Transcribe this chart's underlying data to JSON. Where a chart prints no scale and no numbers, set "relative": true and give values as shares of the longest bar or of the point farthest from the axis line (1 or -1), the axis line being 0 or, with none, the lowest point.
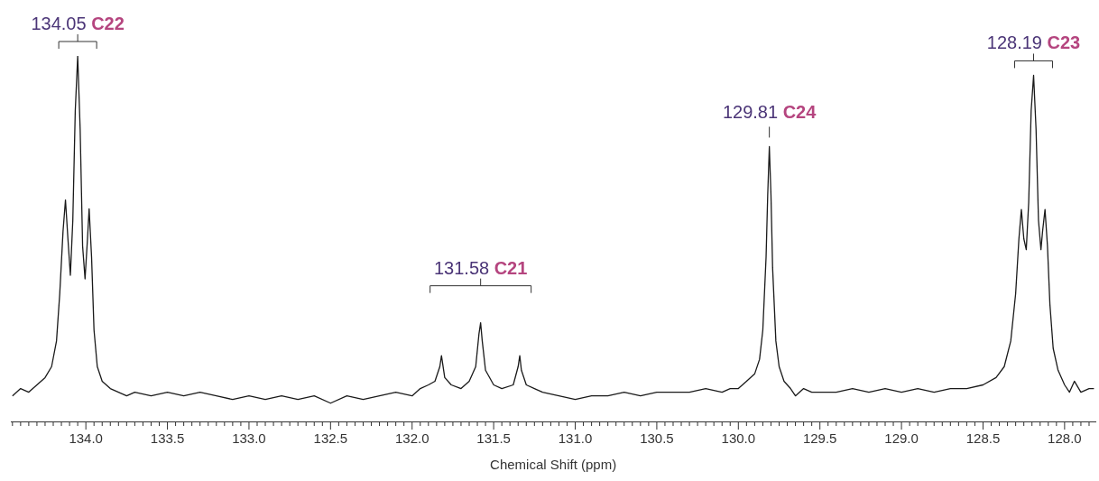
{
  "chart_data": {
    "type": "line",
    "relative": true,
    "xlabel": "Chemical Shift (ppm)",
    "color": "#1a1a1a",
    "marker": "none",
    "line_style": "solid",
    "legend": false,
    "grid": false,
    "xlim": [
      134.46,
      127.81
    ],
    "xticks": [
      {
        "value": 134.45,
        "label": null
      },
      {
        "value": 134.4,
        "label": null
      },
      {
        "value": 134.35,
        "label": null
      },
      {
        "value": 134.3,
        "label": null
      },
      {
        "value": 134.25,
        "label": null
      },
      {
        "value": 134.2,
        "label": null
      },
      {
        "value": 134.15,
        "label": null
      },
      {
        "value": 134.1,
        "label": null
      },
      {
        "value": 134.05,
        "label": null
      },
      {
        "value": 134,
        "label": "134.0"
      },
      {
        "value": 133.95,
        "label": null
      },
      {
        "value": 133.9,
        "label": null
      },
      {
        "value": 133.85,
        "label": null
      },
      {
        "value": 133.8,
        "label": null
      },
      {
        "value": 133.75,
        "label": null
      },
      {
        "value": 133.7,
        "label": null
      },
      {
        "value": 133.65,
        "label": null
      },
      {
        "value": 133.6,
        "label": null
      },
      {
        "value": 133.55,
        "label": null
      },
      {
        "value": 133.5,
        "label": "133.5"
      },
      {
        "value": 133.45,
        "label": null
      },
      {
        "value": 133.4,
        "label": null
      },
      {
        "value": 133.35,
        "label": null
      },
      {
        "value": 133.3,
        "label": null
      },
      {
        "value": 133.25,
        "label": null
      },
      {
        "value": 133.2,
        "label": null
      },
      {
        "value": 133.15,
        "label": null
      },
      {
        "value": 133.1,
        "label": null
      },
      {
        "value": 133.05,
        "label": null
      },
      {
        "value": 133,
        "label": "133.0"
      },
      {
        "value": 132.95,
        "label": null
      },
      {
        "value": 132.9,
        "label": null
      },
      {
        "value": 132.85,
        "label": null
      },
      {
        "value": 132.8,
        "label": null
      },
      {
        "value": 132.75,
        "label": null
      },
      {
        "value": 132.7,
        "label": null
      },
      {
        "value": 132.65,
        "label": null
      },
      {
        "value": 132.6,
        "label": null
      },
      {
        "value": 132.55,
        "label": null
      },
      {
        "value": 132.5,
        "label": "132.5"
      },
      {
        "value": 132.45,
        "label": null
      },
      {
        "value": 132.4,
        "label": null
      },
      {
        "value": 132.35,
        "label": null
      },
      {
        "value": 132.3,
        "label": null
      },
      {
        "value": 132.25,
        "label": null
      },
      {
        "value": 132.2,
        "label": null
      },
      {
        "value": 132.15,
        "label": null
      },
      {
        "value": 132.1,
        "label": null
      },
      {
        "value": 132.05,
        "label": null
      },
      {
        "value": 132,
        "label": "132.0"
      },
      {
        "value": 131.95,
        "label": null
      },
      {
        "value": 131.9,
        "label": null
      },
      {
        "value": 131.85,
        "label": null
      },
      {
        "value": 131.8,
        "label": null
      },
      {
        "value": 131.75,
        "label": null
      },
      {
        "value": 131.7,
        "label": null
      },
      {
        "value": 131.65,
        "label": null
      },
      {
        "value": 131.6,
        "label": null
      },
      {
        "value": 131.55,
        "label": null
      },
      {
        "value": 131.5,
        "label": "131.5"
      },
      {
        "value": 131.45,
        "label": null
      },
      {
        "value": 131.4,
        "label": null
      },
      {
        "value": 131.35,
        "label": null
      },
      {
        "value": 131.3,
        "label": null
      },
      {
        "value": 131.25,
        "label": null
      },
      {
        "value": 131.2,
        "label": null
      },
      {
        "value": 131.15,
        "label": null
      },
      {
        "value": 131.1,
        "label": null
      },
      {
        "value": 131.05,
        "label": null
      },
      {
        "value": 131,
        "label": "131.0"
      },
      {
        "value": 130.95,
        "label": null
      },
      {
        "value": 130.9,
        "label": null
      },
      {
        "value": 130.85,
        "label": null
      },
      {
        "value": 130.8,
        "label": null
      },
      {
        "value": 130.75,
        "label": null
      },
      {
        "value": 130.7,
        "label": null
      },
      {
        "value": 130.65,
        "label": null
      },
      {
        "value": 130.6,
        "label": null
      },
      {
        "value": 130.55,
        "label": null
      },
      {
        "value": 130.5,
        "label": "130.5"
      },
      {
        "value": 130.45,
        "label": null
      },
      {
        "value": 130.4,
        "label": null
      },
      {
        "value": 130.35,
        "label": null
      },
      {
        "value": 130.3,
        "label": null
      },
      {
        "value": 130.25,
        "label": null
      },
      {
        "value": 130.2,
        "label": null
      },
      {
        "value": 130.15,
        "label": null
      },
      {
        "value": 130.1,
        "label": null
      },
      {
        "value": 130.05,
        "label": null
      },
      {
        "value": 130,
        "label": "130.0"
      },
      {
        "value": 129.95,
        "label": null
      },
      {
        "value": 129.9,
        "label": null
      },
      {
        "value": 129.85,
        "label": null
      },
      {
        "value": 129.8,
        "label": null
      },
      {
        "value": 129.75,
        "label": null
      },
      {
        "value": 129.7,
        "label": null
      },
      {
        "value": 129.65,
        "label": null
      },
      {
        "value": 129.6,
        "label": null
      },
      {
        "value": 129.55,
        "label": null
      },
      {
        "value": 129.5,
        "label": "129.5"
      },
      {
        "value": 129.45,
        "label": null
      },
      {
        "value": 129.4,
        "label": null
      },
      {
        "value": 129.35,
        "label": null
      },
      {
        "value": 129.3,
        "label": null
      },
      {
        "value": 129.25,
        "label": null
      },
      {
        "value": 129.2,
        "label": null
      },
      {
        "value": 129.15,
        "label": null
      },
      {
        "value": 129.1,
        "label": null
      },
      {
        "value": 129.05,
        "label": null
      },
      {
        "value": 129,
        "label": "129.0"
      },
      {
        "value": 128.95,
        "label": null
      },
      {
        "value": 128.9,
        "label": null
      },
      {
        "value": 128.85,
        "label": null
      },
      {
        "value": 128.8,
        "label": null
      },
      {
        "value": 128.75,
        "label": null
      },
      {
        "value": 128.7,
        "label": null
      },
      {
        "value": 128.65,
        "label": null
      },
      {
        "value": 128.6,
        "label": null
      },
      {
        "value": 128.55,
        "label": null
      },
      {
        "value": 128.5,
        "label": "128.5"
      },
      {
        "value": 128.45,
        "label": null
      },
      {
        "value": 128.4,
        "label": null
      },
      {
        "value": 128.35,
        "label": null
      },
      {
        "value": 128.3,
        "label": null
      },
      {
        "value": 128.25,
        "label": null
      },
      {
        "value": 128.2,
        "label": null
      },
      {
        "value": 128.15,
        "label": null
      },
      {
        "value": 128.1,
        "label": null
      },
      {
        "value": 128.05,
        "label": null
      },
      {
        "value": 128,
        "label": "128.0"
      },
      {
        "value": 127.95,
        "label": null
      },
      {
        "value": 127.9,
        "label": null
      },
      {
        "value": 127.85,
        "label": null
      }
    ],
    "x": [
      134.45,
      134.4,
      134.35,
      134.3,
      134.25,
      134.21,
      134.18,
      134.16,
      134.14,
      134.125,
      134.11,
      134.095,
      134.08,
      134.065,
      134.05,
      134.035,
      134.02,
      134.005,
      133.99,
      133.98,
      133.965,
      133.95,
      133.93,
      133.9,
      133.85,
      133.8,
      133.75,
      133.7,
      133.6,
      133.5,
      133.4,
      133.3,
      133.2,
      133.1,
      133,
      132.9,
      132.8,
      132.7,
      132.6,
      132.5,
      132.4,
      132.3,
      132.2,
      132.1,
      132,
      131.95,
      131.9,
      131.86,
      131.83,
      131.82,
      131.8,
      131.76,
      131.7,
      131.65,
      131.61,
      131.59,
      131.58,
      131.57,
      131.55,
      131.5,
      131.45,
      131.38,
      131.35,
      131.34,
      131.33,
      131.3,
      131.25,
      131.2,
      131.1,
      131,
      130.9,
      130.8,
      130.7,
      130.6,
      130.5,
      130.4,
      130.3,
      130.2,
      130.1,
      130.05,
      130,
      129.95,
      129.9,
      129.87,
      129.85,
      129.83,
      129.82,
      129.81,
      129.8,
      129.79,
      129.77,
      129.75,
      129.72,
      129.68,
      129.65,
      129.6,
      129.55,
      129.5,
      129.4,
      129.3,
      129.2,
      129.1,
      129,
      128.9,
      128.8,
      128.7,
      128.6,
      128.5,
      128.42,
      128.37,
      128.33,
      128.3,
      128.28,
      128.265,
      128.25,
      128.235,
      128.22,
      128.205,
      128.19,
      128.175,
      128.16,
      128.145,
      128.135,
      128.12,
      128.105,
      128.09,
      128.07,
      128.04,
      128,
      127.97,
      127.94,
      127.9,
      127.85,
      127.82
    ],
    "values": [
      0.07,
      0.09,
      0.08,
      0.1,
      0.12,
      0.15,
      0.22,
      0.35,
      0.52,
      0.606,
      0.5,
      0.4,
      0.55,
      0.85,
      1,
      0.8,
      0.48,
      0.39,
      0.5,
      0.582,
      0.45,
      0.25,
      0.15,
      0.11,
      0.09,
      0.08,
      0.07,
      0.08,
      0.07,
      0.08,
      0.07,
      0.08,
      0.07,
      0.06,
      0.07,
      0.06,
      0.07,
      0.06,
      0.07,
      0.05,
      0.07,
      0.06,
      0.07,
      0.08,
      0.07,
      0.09,
      0.1,
      0.11,
      0.15,
      0.18,
      0.12,
      0.1,
      0.09,
      0.11,
      0.15,
      0.24,
      0.27,
      0.22,
      0.14,
      0.1,
      0.09,
      0.1,
      0.15,
      0.18,
      0.14,
      0.1,
      0.09,
      0.08,
      0.07,
      0.06,
      0.07,
      0.07,
      0.08,
      0.07,
      0.08,
      0.08,
      0.08,
      0.09,
      0.08,
      0.09,
      0.09,
      0.11,
      0.13,
      0.17,
      0.25,
      0.45,
      0.62,
      0.752,
      0.62,
      0.42,
      0.22,
      0.15,
      0.11,
      0.09,
      0.07,
      0.09,
      0.08,
      0.08,
      0.08,
      0.09,
      0.08,
      0.09,
      0.08,
      0.09,
      0.08,
      0.09,
      0.09,
      0.1,
      0.12,
      0.15,
      0.22,
      0.35,
      0.5,
      0.58,
      0.5,
      0.47,
      0.6,
      0.85,
      0.947,
      0.8,
      0.55,
      0.47,
      0.52,
      0.58,
      0.48,
      0.32,
      0.2,
      0.14,
      0.1,
      0.08,
      0.11,
      0.08,
      0.09,
      0.09
    ],
    "annotations": [
      {
        "text": "134.05 C22",
        "x": 134.05,
        "y": 1
      },
      {
        "text": "131.58 C21",
        "x": 131.58,
        "y": 0.27
      },
      {
        "text": "129.81 C24",
        "x": 129.81,
        "y": 0.752
      },
      {
        "text": "128.19 C23",
        "x": 128.19,
        "y": 0.947
      }
    ]
  }
}
